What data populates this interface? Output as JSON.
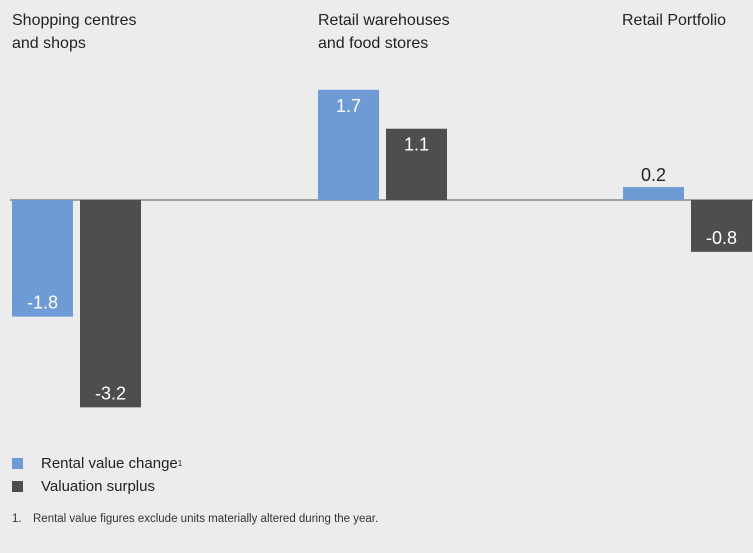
{
  "chart_data": {
    "type": "bar",
    "categories": [
      "Shopping centres\nand shops",
      "Retail warehouses\nand food stores",
      "Retail Portfolio"
    ],
    "series": [
      {
        "name": "Rental value change",
        "values": [
          -1.8,
          1.7,
          0.2
        ],
        "color": "#6e9bd5"
      },
      {
        "name": "Valuation surplus",
        "values": [
          -3.2,
          1.1,
          -0.8
        ],
        "color": "#4d4e50"
      }
    ],
    "data_labels": [
      [
        "-1.8",
        "1.7",
        "0.2"
      ],
      [
        "-3.2",
        "1.1",
        "-0.8"
      ]
    ],
    "ylim": [
      -3.2,
      1.7
    ],
    "grid": false,
    "legend_position": "bottom-left",
    "xlabel": "",
    "ylabel": ""
  },
  "legend": {
    "items": [
      {
        "label": "Rental value change",
        "superscript": "1",
        "color": "#6e9bd5"
      },
      {
        "label": "Valuation surplus",
        "superscript": "",
        "color": "#4d4e50"
      }
    ]
  },
  "footnote": {
    "number": "1.",
    "text": "Rental value figures exclude units materially altered during the year."
  }
}
